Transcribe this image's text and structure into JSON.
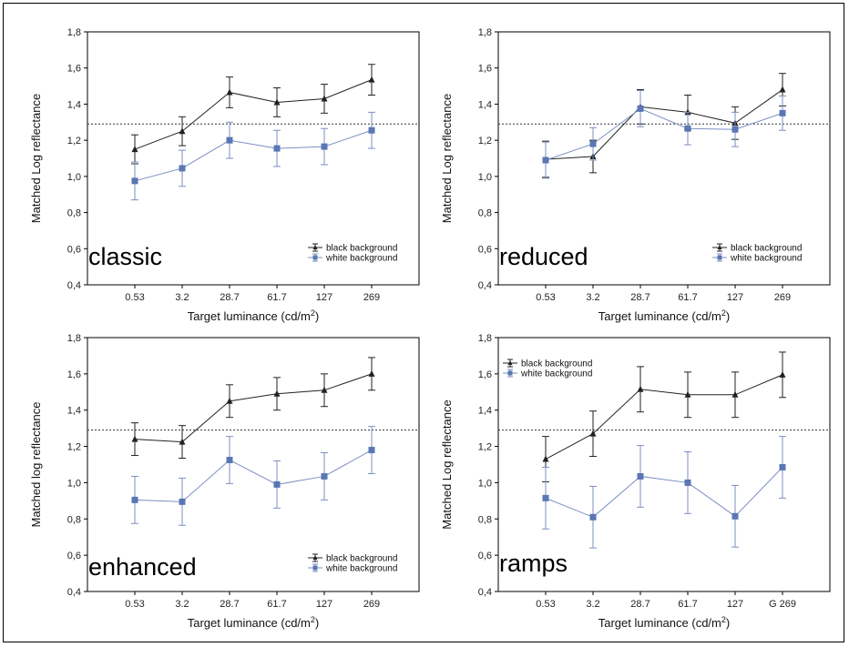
{
  "chart_data": [
    {
      "type": "line",
      "panel_label": "classic",
      "categories": [
        "0.53",
        "3.2",
        "28.7",
        "61.7",
        "127",
        "269"
      ],
      "xlabel": "Target luminance (cd/m",
      "xlabel_sup": "2",
      "xlabel_close": ")",
      "ylabel": "Matched Log reflectance",
      "ylim": [
        0.4,
        1.8
      ],
      "yticks": [
        "0,4",
        "0,6",
        "0,8",
        "1,0",
        "1,2",
        "1,4",
        "1,6",
        "1,8"
      ],
      "reference_line": 1.29,
      "legend_position": "bottom-right",
      "series": [
        {
          "name": "black background",
          "color": "#222222",
          "marker": "triangle",
          "values": [
            1.15,
            1.25,
            1.465,
            1.41,
            1.43,
            1.535
          ],
          "err": [
            0.08,
            0.08,
            0.085,
            0.08,
            0.08,
            0.085
          ]
        },
        {
          "name": "white background",
          "color": "#7b8fc2",
          "marker": "square",
          "values": [
            0.975,
            1.045,
            1.2,
            1.155,
            1.165,
            1.255
          ],
          "err": [
            0.105,
            0.1,
            0.1,
            0.1,
            0.1,
            0.1
          ]
        }
      ]
    },
    {
      "type": "line",
      "panel_label": "reduced",
      "categories": [
        "0.53",
        "3.2",
        "28.7",
        "61.7",
        "127",
        "269"
      ],
      "xlabel": "Target luminance (cd/m",
      "xlabel_sup": "2",
      "xlabel_close": ")",
      "ylabel": "Matched Log reflectance",
      "ylim": [
        0.4,
        1.8
      ],
      "yticks": [
        "0,4",
        "0,6",
        "0,8",
        "1,0",
        "1,2",
        "1,4",
        "1,6",
        "1,8"
      ],
      "reference_line": 1.29,
      "legend_position": "bottom-right",
      "series": [
        {
          "name": "black background",
          "color": "#222222",
          "marker": "triangle",
          "values": [
            1.095,
            1.11,
            1.385,
            1.355,
            1.295,
            1.48
          ],
          "err": [
            0.1,
            0.09,
            0.095,
            0.095,
            0.09,
            0.09
          ]
        },
        {
          "name": "white background",
          "color": "#7b8fc2",
          "marker": "square",
          "values": [
            1.09,
            1.18,
            1.375,
            1.265,
            1.26,
            1.35
          ],
          "err": [
            0.1,
            0.09,
            0.1,
            0.09,
            0.095,
            0.095
          ]
        }
      ]
    },
    {
      "type": "line",
      "panel_label": "enhanced",
      "categories": [
        "0.53",
        "3.2",
        "28.7",
        "61.7",
        "127",
        "269"
      ],
      "xlabel": "Target luminance (cd/m",
      "xlabel_sup": "2",
      "xlabel_close": ")",
      "ylabel": "Matched log reflectance",
      "ylim": [
        0.4,
        1.8
      ],
      "yticks": [
        "0,4",
        "0,6",
        "0,8",
        "1,0",
        "1,2",
        "1,4",
        "1,6",
        "1,8"
      ],
      "reference_line": 1.29,
      "legend_position": "bottom-right",
      "series": [
        {
          "name": "black background",
          "color": "#222222",
          "marker": "triangle",
          "values": [
            1.24,
            1.225,
            1.45,
            1.49,
            1.51,
            1.6
          ],
          "err": [
            0.09,
            0.09,
            0.09,
            0.09,
            0.09,
            0.09
          ]
        },
        {
          "name": "white background",
          "color": "#7b8fc2",
          "marker": "square",
          "values": [
            0.905,
            0.895,
            1.125,
            0.99,
            1.035,
            1.18
          ],
          "err": [
            0.13,
            0.13,
            0.13,
            0.13,
            0.13,
            0.13
          ]
        }
      ]
    },
    {
      "type": "line",
      "panel_label": "ramps",
      "categories": [
        "0.53",
        "3.2",
        "28.7",
        "61.7",
        "127",
        "G 269"
      ],
      "xlabel": "Target luminance (cd/m",
      "xlabel_sup": "2",
      "xlabel_close": ")",
      "ylabel": "Matched Log reflectance",
      "ylim": [
        0.4,
        1.8
      ],
      "yticks": [
        "0,4",
        "0,6",
        "0,8",
        "1,0",
        "1,2",
        "1,4",
        "1,6",
        "1,8"
      ],
      "reference_line": 1.29,
      "legend_position": "top-left",
      "series": [
        {
          "name": "black background",
          "color": "#222222",
          "marker": "triangle",
          "values": [
            1.13,
            1.27,
            1.515,
            1.485,
            1.485,
            1.595
          ],
          "err": [
            0.125,
            0.125,
            0.125,
            0.125,
            0.125,
            0.125
          ]
        },
        {
          "name": "white background",
          "color": "#7b8fc2",
          "marker": "square",
          "values": [
            0.915,
            0.81,
            1.035,
            1.0,
            0.815,
            1.085
          ],
          "err": [
            0.17,
            0.17,
            0.17,
            0.17,
            0.17,
            0.17
          ]
        }
      ]
    }
  ]
}
